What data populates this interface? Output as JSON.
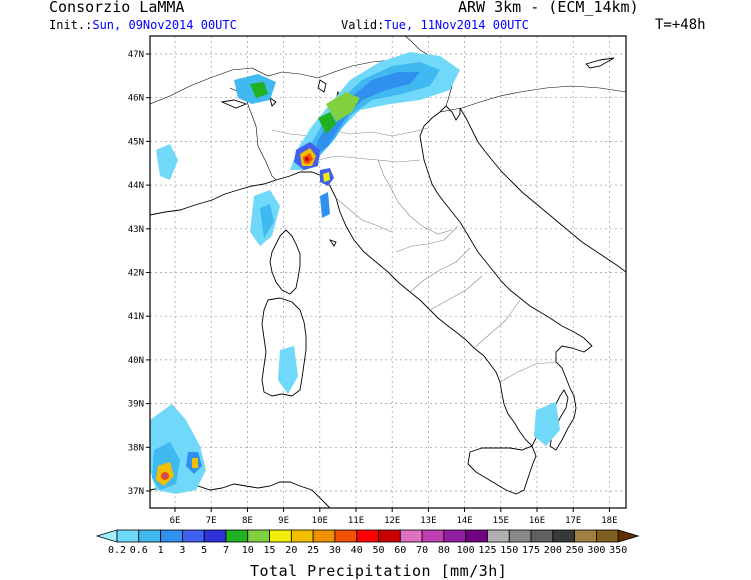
{
  "header": {
    "org": "Consorzio LaMMA",
    "model": "ARW 3km - (ECM_14km)",
    "init_label": "Init.:",
    "init_value": "Sun, 09Nov2014 00UTC",
    "valid_label": "Valid:",
    "valid_value": "Tue, 11Nov2014 00UTC",
    "step": "T=+48h"
  },
  "map": {
    "lat_labels": [
      "47N",
      "46N",
      "45N",
      "44N",
      "43N",
      "42N",
      "41N",
      "40N",
      "39N",
      "38N",
      "37N"
    ],
    "lon_labels": [
      "6E",
      "7E",
      "8E",
      "9E",
      "10E",
      "11E",
      "12E",
      "13E",
      "14E",
      "15E",
      "16E",
      "17E",
      "18E"
    ],
    "gridlines": true
  },
  "colorbar": {
    "title": "Total Precipitation [mm/3h]",
    "levels": [
      "0.2",
      "0.6",
      "1",
      "3",
      "5",
      "7",
      "10",
      "15",
      "20",
      "25",
      "30",
      "40",
      "50",
      "60",
      "70",
      "80",
      "100",
      "125",
      "150",
      "175",
      "200",
      "250",
      "300",
      "350"
    ],
    "colors": [
      "#a0f0ff",
      "#70d8f8",
      "#40b8f0",
      "#3090f0",
      "#4060f0",
      "#3030d8",
      "#20b020",
      "#80d040",
      "#f0f000",
      "#f0c000",
      "#f09000",
      "#f05000",
      "#ff0000",
      "#c80000",
      "#e070c0",
      "#c040b0",
      "#9020a0",
      "#700080",
      "#b0b0b0",
      "#888888",
      "#606060",
      "#383838",
      "#a08040",
      "#806020",
      "#603000"
    ]
  }
}
